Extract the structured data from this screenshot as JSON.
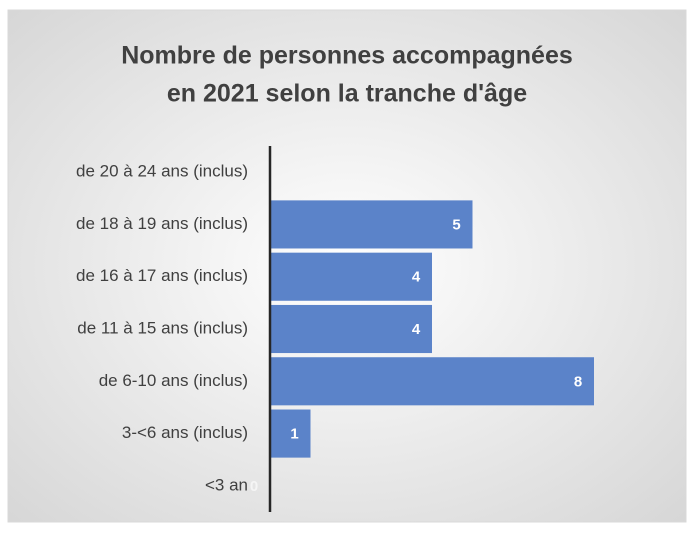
{
  "chart_data": {
    "type": "bar",
    "orientation": "horizontal",
    "title": [
      "Nombre de personnes accompagnées",
      "en 2021 selon la tranche d'âge"
    ],
    "categories": [
      "de 20 à 24 ans (inclus)",
      "de 18 à 19 ans (inclus)",
      "de 16 à 17 ans (inclus)",
      "de 11 à 15 ans (inclus)",
      "de 6-10 ans (inclus)",
      "3-<6 ans (inclus)",
      "<3 an"
    ],
    "values": [
      null,
      5,
      4,
      4,
      8,
      1,
      0
    ],
    "color": "#5b83c9"
  }
}
